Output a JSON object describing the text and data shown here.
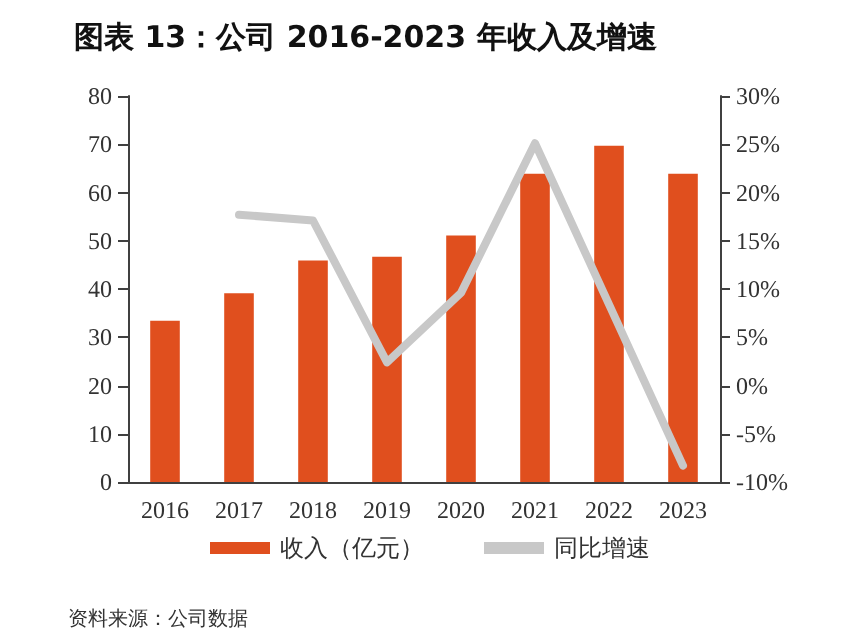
{
  "chart_data": {
    "type": "bar",
    "title": "图表 13：公司 2016-2023 年收入及增速",
    "categories": [
      "2016",
      "2017",
      "2018",
      "2019",
      "2020",
      "2021",
      "2022",
      "2023"
    ],
    "series": [
      {
        "name": "收入（亿元）",
        "color": "#e04f1e",
        "values": [
          33.4,
          39.1,
          45.9,
          46.7,
          51.1,
          63.9,
          69.7,
          63.9
        ]
      },
      {
        "name": "同比增速",
        "type": "line",
        "axis": "y2",
        "color": "#c8c8c8",
        "values": [
          null,
          17.7,
          17.1,
          2.4,
          9.6,
          25.1,
          8.4,
          -8.3
        ]
      }
    ],
    "ylim": [
      0,
      80
    ],
    "yticks": [
      0,
      10,
      20,
      30,
      40,
      50,
      60,
      70,
      80
    ],
    "y2lim": [
      -10,
      30
    ],
    "y2ticks": [
      {
        "value": -10,
        "label": "-10%"
      },
      {
        "value": -5,
        "label": "-5%"
      },
      {
        "value": 0,
        "label": "0%"
      },
      {
        "value": 5,
        "label": "5%"
      },
      {
        "value": 10,
        "label": "10%"
      },
      {
        "value": 15,
        "label": "15%"
      },
      {
        "value": 20,
        "label": "20%"
      },
      {
        "value": 25,
        "label": "25%"
      },
      {
        "value": 30,
        "label": "30%"
      }
    ],
    "annotations": [
      "资料来源：公司数据"
    ],
    "grid": false,
    "legend": "bottom",
    "marker": "none",
    "line_style": "solid"
  }
}
